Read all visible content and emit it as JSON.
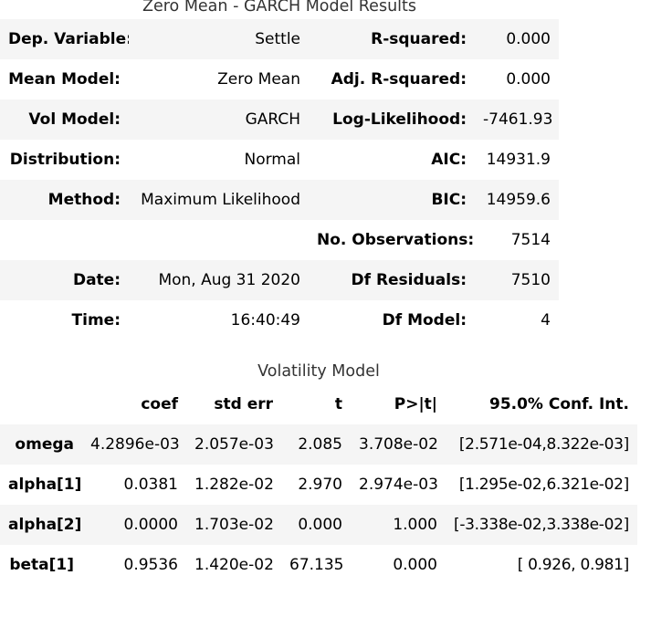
{
  "summary": {
    "title": "Zero Mean - GARCH Model Results",
    "rows": [
      {
        "l1": "Dep. Variable:",
        "v1": "Settle",
        "l2": "R-squared:",
        "v2": "0.000"
      },
      {
        "l1": "Mean Model:",
        "v1": "Zero Mean",
        "l2": "Adj. R-squared:",
        "v2": "0.000"
      },
      {
        "l1": "Vol Model:",
        "v1": "GARCH",
        "l2": "Log-Likelihood:",
        "v2": "-7461.93"
      },
      {
        "l1": "Distribution:",
        "v1": "Normal",
        "l2": "AIC:",
        "v2": "14931.9"
      },
      {
        "l1": "Method:",
        "v1": "Maximum Likelihood",
        "l2": "BIC:",
        "v2": "14959.6"
      },
      {
        "l1": "",
        "v1": "",
        "l2": "No. Observations:",
        "v2": "7514"
      },
      {
        "l1": "Date:",
        "v1": "Mon, Aug 31 2020",
        "l2": "Df Residuals:",
        "v2": "7510"
      },
      {
        "l1": "Time:",
        "v1": "16:40:49",
        "l2": "Df Model:",
        "v2": "4"
      }
    ]
  },
  "volatility": {
    "title": "Volatility Model",
    "headers": [
      "",
      "coef",
      "std err",
      "t",
      "P>|t|",
      "95.0% Conf. Int."
    ],
    "rows": [
      {
        "name": "omega",
        "coef": "4.2896e-03",
        "std_err": "2.057e-03",
        "t": "2.085",
        "p": "3.708e-02",
        "conf": "[2.571e-04,8.322e-03]"
      },
      {
        "name": "alpha[1]",
        "coef": "0.0381",
        "std_err": "1.282e-02",
        "t": "2.970",
        "p": "2.974e-03",
        "conf": "[1.295e-02,6.321e-02]"
      },
      {
        "name": "alpha[2]",
        "coef": "0.0000",
        "std_err": "1.703e-02",
        "t": "0.000",
        "p": "1.000",
        "conf": "[-3.338e-02,3.338e-02]"
      },
      {
        "name": "beta[1]",
        "coef": "0.9536",
        "std_err": "1.420e-02",
        "t": "67.135",
        "p": "0.000",
        "conf": "[ 0.926, 0.981]"
      }
    ]
  }
}
